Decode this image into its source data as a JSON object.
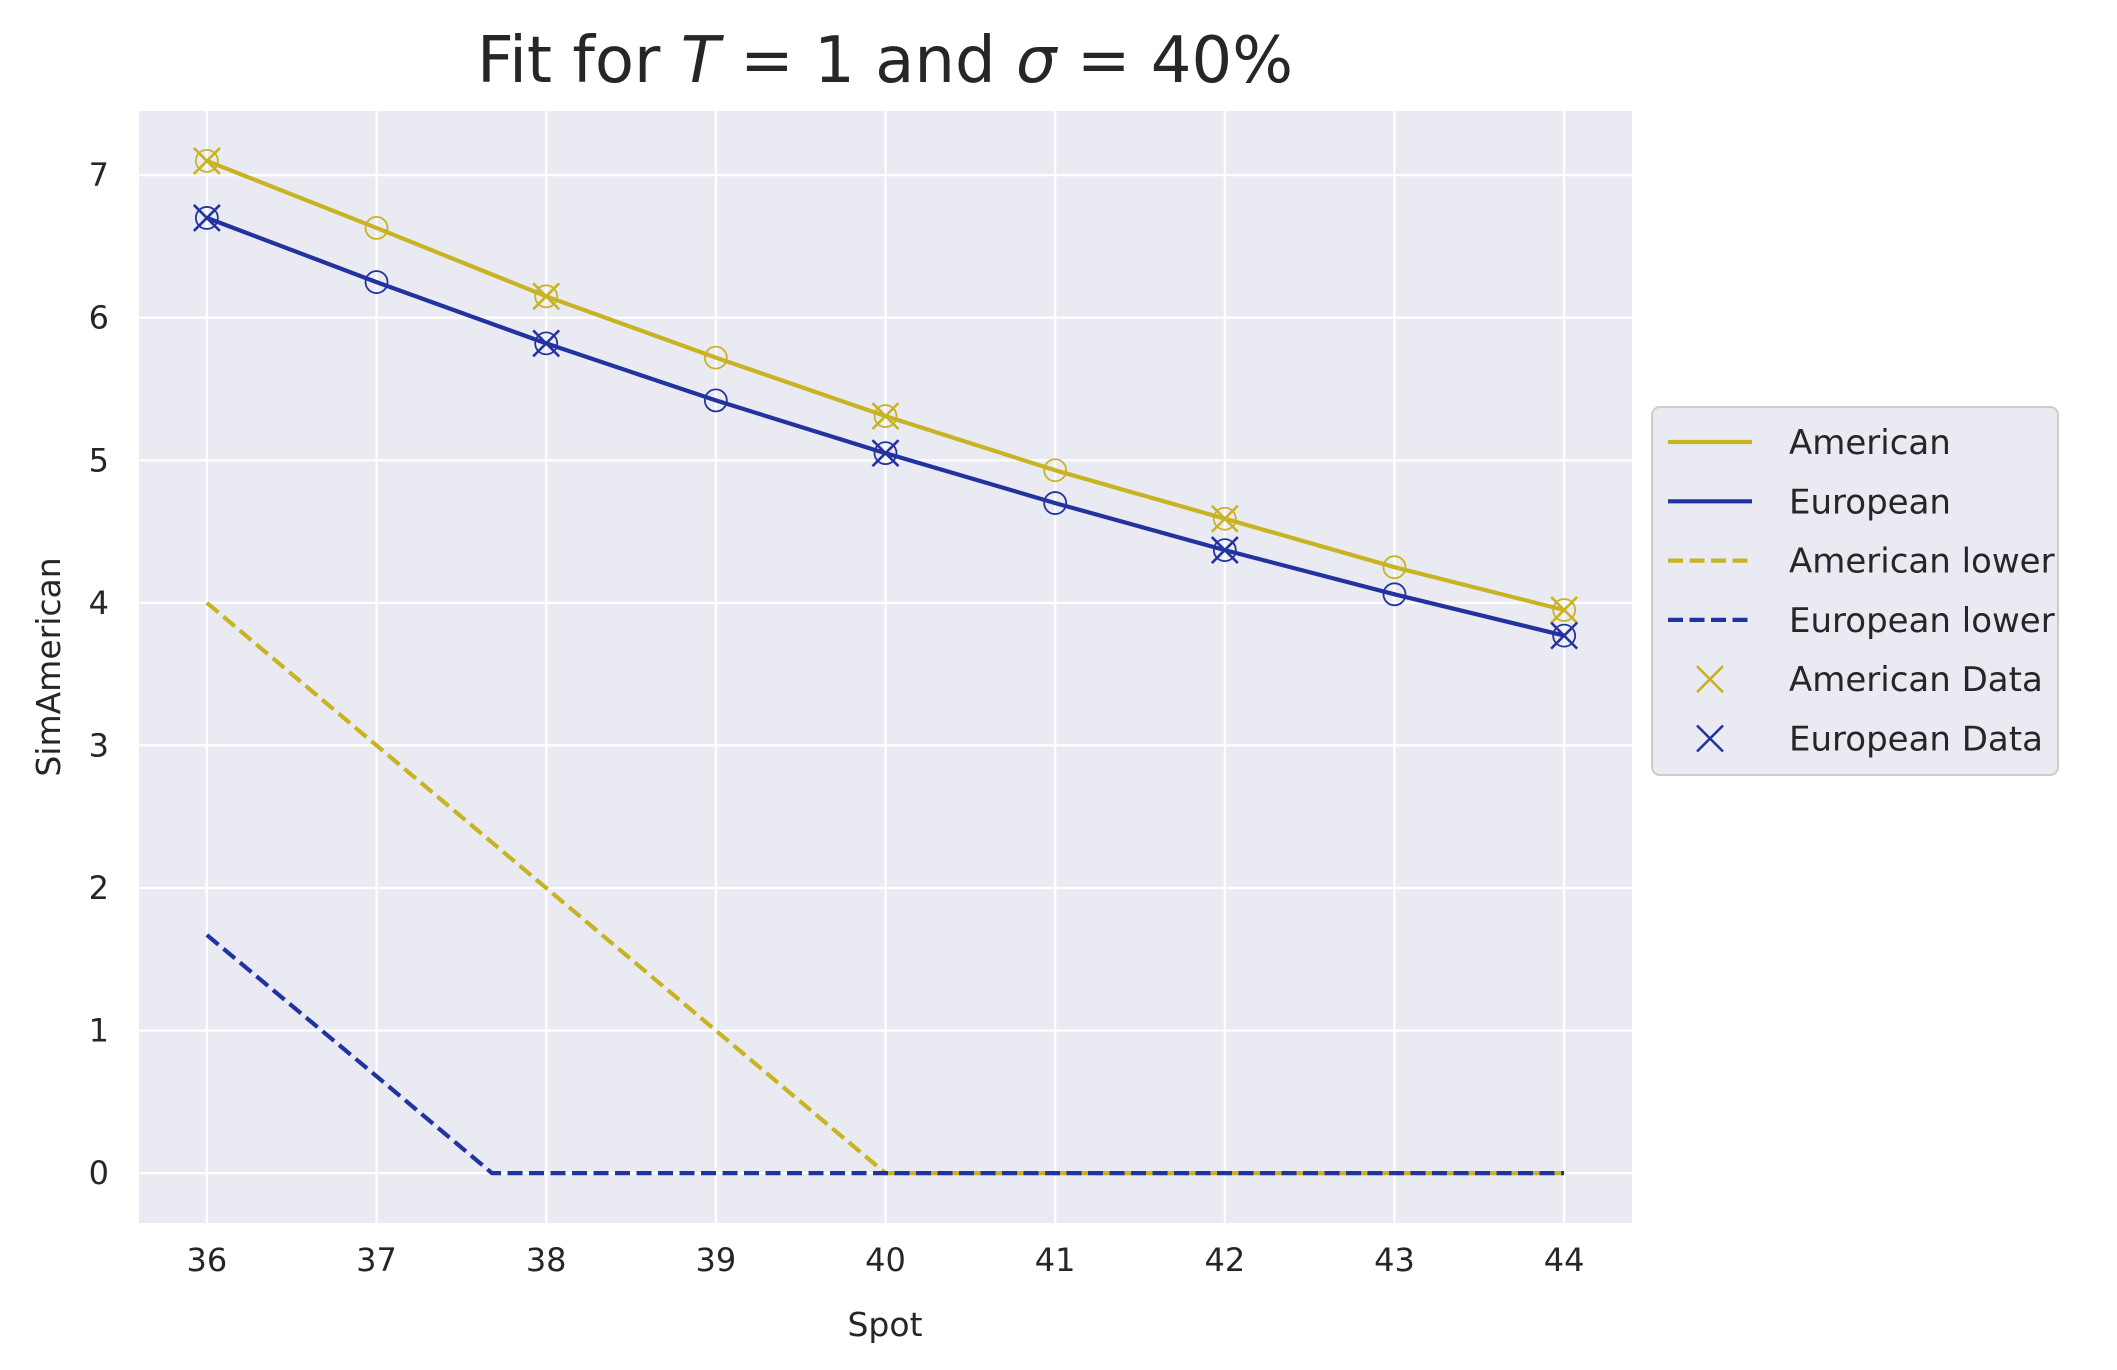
{
  "chart_data": {
    "type": "line",
    "title": "Fit for T = 1 and σ = 40%",
    "title_parts": {
      "lead": "Fit for ",
      "t_sym": "T",
      "t_eq": " = 1 and ",
      "sigma_sym": "σ",
      "sigma_eq": " = 40%"
    },
    "xlabel": "Spot",
    "ylabel": "SimAmerican",
    "xlim": [
      35.6,
      44.4
    ],
    "ylim": [
      -0.35,
      7.45
    ],
    "xticks": [
      36,
      37,
      38,
      39,
      40,
      41,
      42,
      43,
      44
    ],
    "yticks": [
      0,
      1,
      2,
      3,
      4,
      5,
      6,
      7
    ],
    "grid": true,
    "legend_position": "right",
    "series": [
      {
        "name": "American",
        "style": "solid",
        "color": "#c8b322",
        "x": [
          36,
          37,
          38,
          39,
          40,
          41,
          42,
          43,
          44
        ],
        "y": [
          7.1,
          6.63,
          6.15,
          5.72,
          5.31,
          4.93,
          4.59,
          4.25,
          3.95
        ]
      },
      {
        "name": "European",
        "style": "solid",
        "color": "#2233a0",
        "x": [
          36,
          37,
          38,
          39,
          40,
          41,
          42,
          43,
          44
        ],
        "y": [
          6.7,
          6.25,
          5.82,
          5.42,
          5.05,
          4.7,
          4.37,
          4.06,
          3.77
        ]
      },
      {
        "name": "American lower",
        "style": "dashed",
        "color": "#c8b322",
        "x": [
          36,
          37,
          38,
          39,
          40,
          41,
          42,
          43,
          44
        ],
        "y": [
          4,
          3,
          2,
          1,
          0,
          0,
          0,
          0,
          0
        ]
      },
      {
        "name": "European lower",
        "style": "dashed",
        "color": "#2233a0",
        "x": [
          36,
          37,
          37.68,
          38,
          39,
          40,
          41,
          42,
          43,
          44
        ],
        "y": [
          1.67,
          0.68,
          0.0,
          0,
          0,
          0,
          0,
          0,
          0,
          0
        ]
      }
    ],
    "scatter": [
      {
        "name": "American Data",
        "marker": "x",
        "color": "#c8b322",
        "x": [
          36,
          38,
          40,
          42,
          44
        ],
        "y": [
          7.1,
          6.15,
          5.31,
          4.59,
          3.95
        ]
      },
      {
        "name": "European Data",
        "marker": "x",
        "color": "#2233a0",
        "x": [
          36,
          38,
          40,
          42,
          44
        ],
        "y": [
          6.7,
          5.82,
          5.05,
          4.37,
          3.77
        ]
      }
    ],
    "fitted_circles": [
      {
        "name": "American fit",
        "color": "#c8b322",
        "x": [
          36,
          37,
          38,
          39,
          40,
          41,
          42,
          43,
          44
        ],
        "y": [
          7.1,
          6.63,
          6.15,
          5.72,
          5.31,
          4.93,
          4.59,
          4.25,
          3.95
        ]
      },
      {
        "name": "European fit",
        "color": "#2233a0",
        "x": [
          36,
          37,
          38,
          39,
          40,
          41,
          42,
          43,
          44
        ],
        "y": [
          6.7,
          6.25,
          5.82,
          5.42,
          5.05,
          4.7,
          4.37,
          4.06,
          3.77
        ]
      }
    ],
    "legend": [
      "American",
      "European",
      "American lower",
      "European lower",
      "American Data",
      "European Data"
    ]
  },
  "colors": {
    "plot_bg": "#eaeaf2",
    "grid": "#ffffff",
    "legend_bg": "#eaeaf2",
    "legend_border": "#cccccc",
    "text": "#262626"
  }
}
